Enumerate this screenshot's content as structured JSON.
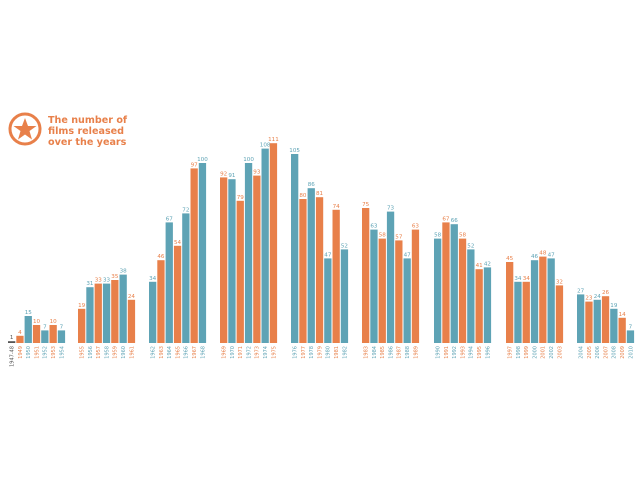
{
  "title": {
    "lines": [
      "The number of",
      "films released",
      "over the years"
    ],
    "icon": "star-badge-icon",
    "color": "#e8804a"
  },
  "colors": {
    "orange": "#e8804a",
    "blue": "#5ea3b5",
    "dark": "#555555"
  },
  "chart_data": {
    "type": "bar",
    "title": "The number of films released over the years",
    "ylim": [
      0,
      115
    ],
    "grid": false,
    "groups": [
      {
        "years": [
          "1947-48",
          "1949",
          "1950",
          "1951",
          "1952",
          "1953",
          "1954"
        ],
        "values": [
          1,
          4,
          15,
          10,
          7,
          10,
          7
        ],
        "colors": [
          "dark",
          "orange",
          "blue",
          "orange",
          "blue",
          "orange",
          "blue"
        ]
      },
      {
        "years": [
          "1955",
          "1956",
          "1957",
          "1958",
          "1959",
          "1960",
          "1961"
        ],
        "values": [
          19,
          31,
          33,
          33,
          35,
          38,
          24
        ],
        "colors": [
          "orange",
          "blue",
          "orange",
          "blue",
          "orange",
          "blue",
          "orange"
        ]
      },
      {
        "years": [
          "1962",
          "1963",
          "1964",
          "1965",
          "1966",
          "1967",
          "1968"
        ],
        "values": [
          34,
          46,
          67,
          54,
          72,
          97,
          100
        ],
        "colors": [
          "blue",
          "orange",
          "blue",
          "orange",
          "blue",
          "orange",
          "blue"
        ]
      },
      {
        "years": [
          "1969",
          "1970",
          "1971",
          "1972",
          "1973",
          "1974",
          "1975"
        ],
        "values": [
          92,
          91,
          79,
          100,
          93,
          108,
          111
        ],
        "colors": [
          "orange",
          "blue",
          "orange",
          "blue",
          "orange",
          "blue",
          "orange"
        ]
      },
      {
        "years": [
          "1976",
          "1977",
          "1978",
          "1979",
          "1980",
          "1981",
          "1982"
        ],
        "values": [
          105,
          80,
          86,
          81,
          47,
          74,
          52
        ],
        "colors": [
          "blue",
          "orange",
          "blue",
          "orange",
          "blue",
          "orange",
          "blue"
        ]
      },
      {
        "years": [
          "1983",
          "1984",
          "1985",
          "1986",
          "1987",
          "1988",
          "1989"
        ],
        "values": [
          75,
          63,
          58,
          73,
          57,
          47,
          63
        ],
        "colors": [
          "orange",
          "blue",
          "orange",
          "blue",
          "orange",
          "blue",
          "orange"
        ]
      },
      {
        "years": [
          "1990",
          "1991",
          "1992",
          "1993",
          "1994",
          "1995",
          "1996"
        ],
        "values": [
          58,
          67,
          66,
          58,
          52,
          41,
          42
        ],
        "colors": [
          "blue",
          "orange",
          "blue",
          "orange",
          "blue",
          "orange",
          "blue"
        ]
      },
      {
        "years": [
          "1997",
          "1998",
          "1999",
          "2000",
          "2001",
          "2002",
          "2003"
        ],
        "values": [
          45,
          34,
          34,
          46,
          48,
          47,
          32
        ],
        "colors": [
          "orange",
          "blue",
          "orange",
          "blue",
          "orange",
          "blue",
          "orange"
        ]
      },
      {
        "years": [
          "2004",
          "2005",
          "2006",
          "2007",
          "2008",
          "2009",
          "2010"
        ],
        "values": [
          27,
          23,
          24,
          26,
          19,
          14,
          7
        ],
        "colors": [
          "blue",
          "orange",
          "blue",
          "orange",
          "blue",
          "orange",
          "blue"
        ]
      }
    ]
  }
}
